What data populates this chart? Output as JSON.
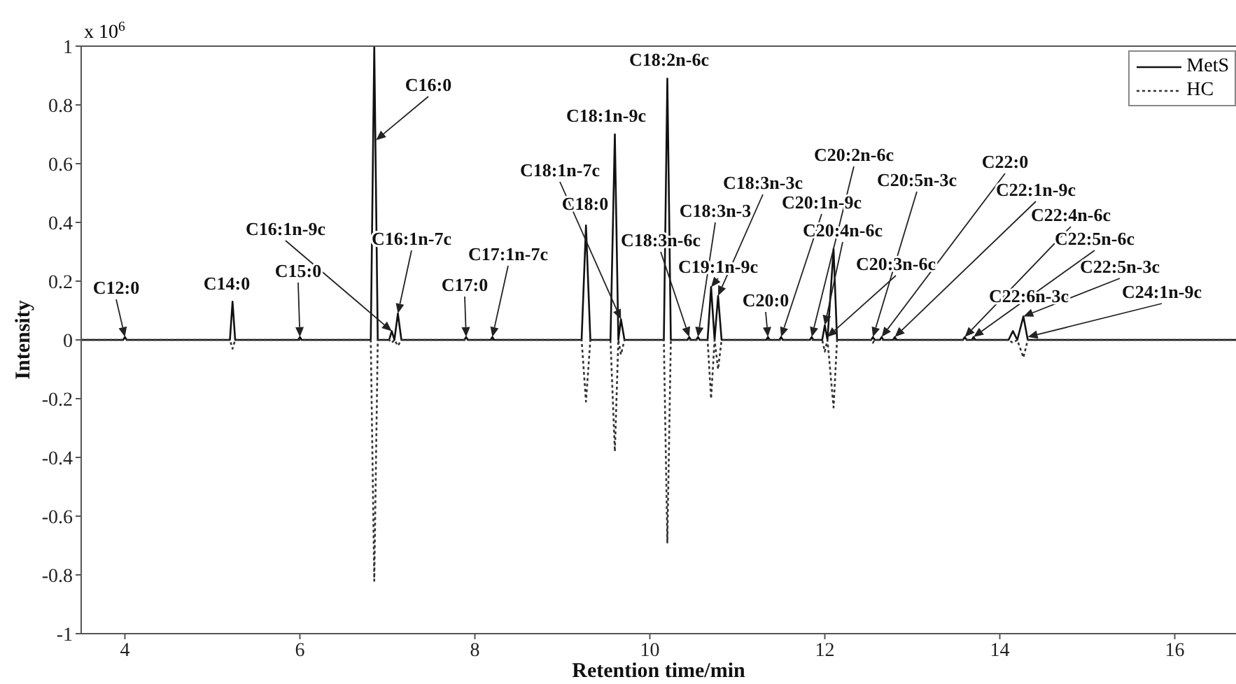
{
  "chart_data": {
    "type": "line",
    "xlabel": "Retention time/min",
    "ylabel": "Intensity",
    "x": [
      3.5,
      3.98,
      4.0,
      4.02,
      5.2,
      5.23,
      5.26,
      5.98,
      6.0,
      6.02,
      6.81,
      6.85,
      6.89,
      7.02,
      7.05,
      7.08,
      7.12,
      7.16,
      7.88,
      7.9,
      7.92,
      8.18,
      8.2,
      8.22,
      9.22,
      9.27,
      9.32,
      9.55,
      9.6,
      9.64,
      9.67,
      9.71,
      10.16,
      10.2,
      10.24,
      10.43,
      10.45,
      10.47,
      10.53,
      10.55,
      10.57,
      10.66,
      10.7,
      10.74,
      10.78,
      10.82,
      11.33,
      11.35,
      11.37,
      11.48,
      11.5,
      11.52,
      11.83,
      11.85,
      11.87,
      11.97,
      12.0,
      12.03,
      12.1,
      12.14,
      12.53,
      12.55,
      12.57,
      12.63,
      12.65,
      12.67,
      12.78,
      12.8,
      12.82,
      13.58,
      13.6,
      13.62,
      13.68,
      13.7,
      13.72,
      14.1,
      14.15,
      14.2,
      14.27,
      14.32,
      16.7
    ],
    "series": [
      {
        "name": "MetS",
        "color": "#111111",
        "line_style": "solid",
        "values": [
          0,
          0,
          0.01,
          0,
          0,
          0.13,
          0,
          0,
          0.01,
          0,
          0,
          1,
          0,
          0,
          0.03,
          0,
          0.09,
          0,
          0,
          0.01,
          0,
          0,
          0.01,
          0,
          0,
          0.39,
          0,
          0,
          0.7,
          0,
          0.07,
          0,
          0,
          0.89,
          0,
          0,
          0.01,
          0,
          0,
          0.01,
          0,
          0,
          0.18,
          0,
          0.15,
          0,
          0,
          0.01,
          0,
          0,
          0.01,
          0,
          0,
          0.01,
          0,
          0,
          0.05,
          0,
          0.31,
          0,
          0,
          0.01,
          0,
          0,
          0.01,
          0,
          0,
          0.01,
          0,
          0,
          0.01,
          0,
          0,
          0.01,
          0,
          0,
          0.03,
          0,
          0.08,
          0,
          0
        ]
      },
      {
        "name": "HC",
        "color": "#333333",
        "line_style": "dotted",
        "values": [
          0,
          0,
          0,
          0,
          0,
          -0.03,
          0,
          0,
          0,
          0,
          0,
          -0.82,
          0,
          0,
          -0.01,
          0,
          -0.02,
          0,
          0,
          0,
          0,
          0,
          0,
          0,
          0,
          -0.21,
          0,
          0,
          -0.38,
          0,
          -0.05,
          0,
          0,
          -0.69,
          0,
          0,
          0,
          0,
          0,
          0,
          0,
          0,
          -0.2,
          0,
          -0.1,
          0,
          0,
          0,
          0,
          0,
          0,
          0,
          0,
          0,
          0,
          0,
          -0.04,
          0,
          -0.23,
          0,
          0,
          -0.01,
          0,
          0,
          0,
          0,
          0,
          0,
          0,
          0,
          0,
          0,
          0,
          0,
          0,
          0,
          -0.01,
          0,
          -0.06,
          0,
          0
        ]
      }
    ],
    "xlim": [
      3.5,
      16.7
    ],
    "xticks": [
      4,
      6,
      8,
      10,
      12,
      14,
      16
    ],
    "ylim": [
      -1,
      1
    ],
    "yticks": [
      -1,
      -0.8,
      -0.6,
      -0.4,
      -0.2,
      0,
      0.2,
      0.4,
      0.6,
      0.8,
      1
    ],
    "grid": false,
    "legend": "top right",
    "marker": "none",
    "annotations": [
      "x 10$^{6}$",
      {
        "text": "C12:0",
        "x": 4.0,
        "y": 0.01
      },
      {
        "text": "C14:0",
        "x": 5.23,
        "y": 0.13
      },
      {
        "text": "C15:0",
        "x": 6.0,
        "y": 0.01
      },
      {
        "text": "C16:0",
        "x": 6.87,
        "y": 0.68
      },
      {
        "text": "C16:1n-9c",
        "x": 7.05,
        "y": 0.03
      },
      {
        "text": "C16:1n-7c",
        "x": 7.12,
        "y": 0.09
      },
      {
        "text": "C17:0",
        "x": 7.9,
        "y": 0.01
      },
      {
        "text": "C17:1n-7c",
        "x": 8.2,
        "y": 0.01
      },
      {
        "text": "C18:1n-7c",
        "x": 9.67,
        "y": 0.07
      },
      {
        "text": "C18:0",
        "x": 9.27,
        "y": 0.39
      },
      {
        "text": "C18:1n-9c",
        "x": 9.6,
        "y": 0.7
      },
      {
        "text": "C18:2n-6c",
        "x": 10.2,
        "y": 0.89
      },
      {
        "text": "C18:3n-6c",
        "x": 10.45,
        "y": 0.01
      },
      {
        "text": "C18:3n-3",
        "x": 10.55,
        "y": 0.01
      },
      {
        "text": "C18:3n-3c",
        "x": 10.78,
        "y": 0.15
      },
      {
        "text": "C19:1n-9c",
        "x": 10.7,
        "y": 0.18
      },
      {
        "text": "C20:0",
        "x": 11.35,
        "y": 0.01
      },
      {
        "text": "C20:1n-9c",
        "x": 11.5,
        "y": 0.01
      },
      {
        "text": "C20:2n-6c",
        "x": 11.85,
        "y": 0.01
      },
      {
        "text": "C20:4n-6c",
        "x": 12.0,
        "y": 0.05
      },
      {
        "text": "C20:3n-6c",
        "x": 12.03,
        "y": 0.01
      },
      {
        "text": "C20:5n-3c",
        "x": 12.55,
        "y": 0.01
      },
      {
        "text": "C22:0",
        "x": 12.65,
        "y": 0.01
      },
      {
        "text": "C22:1n-9c",
        "x": 12.8,
        "y": 0.01
      },
      {
        "text": "C22:4n-6c",
        "x": 13.6,
        "y": 0.01
      },
      {
        "text": "C22:5n-6c",
        "x": 13.7,
        "y": 0.01
      },
      {
        "text": "C22:6n-3c",
        "x": 14.15,
        "y": 0.03
      },
      {
        "text": "C22:5n-3c",
        "x": 14.27,
        "y": 0.08
      },
      {
        "text": "C24:1n-9c",
        "x": 14.32,
        "y": 0.01
      }
    ]
  }
}
